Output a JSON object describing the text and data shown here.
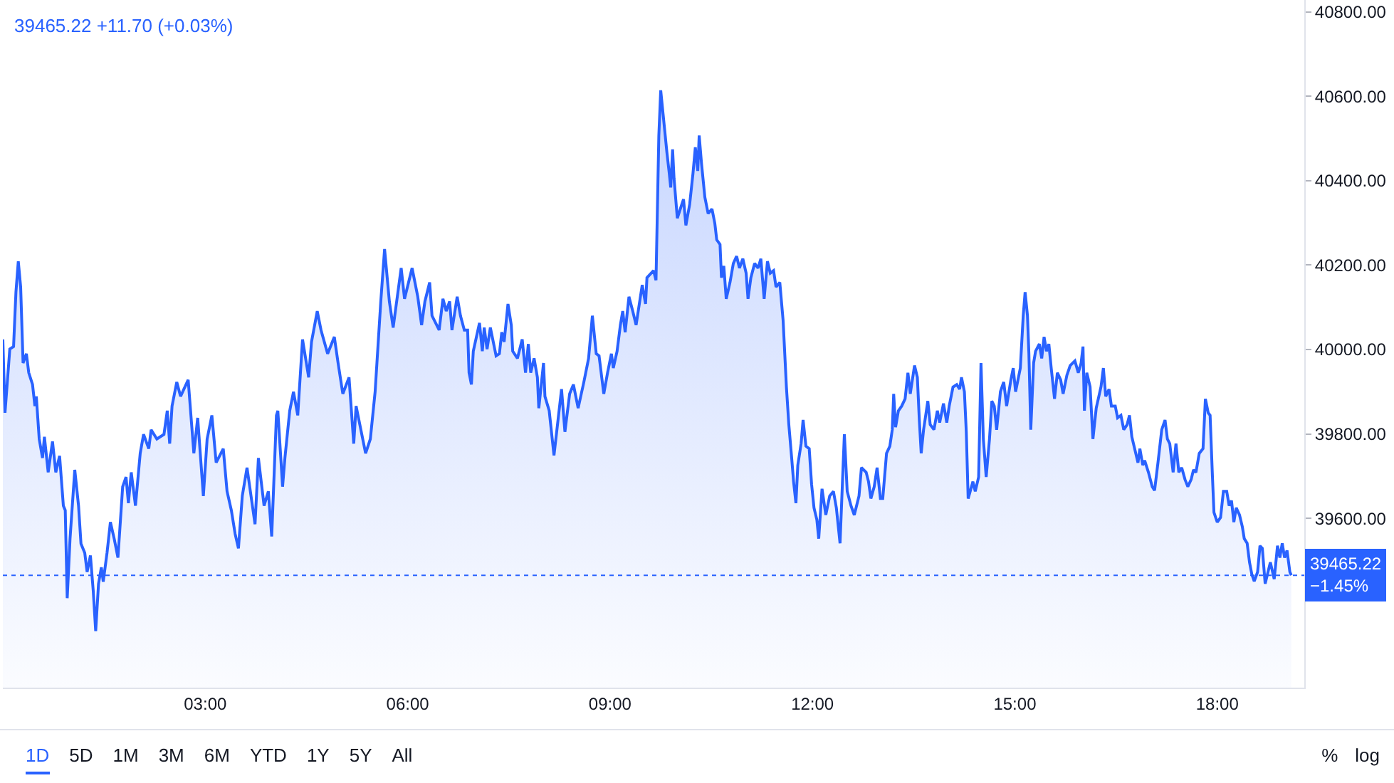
{
  "chart_data": {
    "type": "area",
    "title": "39465.22 +11.70 (+0.03%)",
    "color": "#2962ff",
    "x": [
      0,
      0.032,
      0.103,
      0.159,
      0.194,
      0.229,
      0.264,
      0.3,
      0.349,
      0.384,
      0.44,
      0.475,
      0.496,
      0.539,
      0.588,
      0.616,
      0.672,
      0.736,
      0.785,
      0.841,
      0.897,
      0.925,
      0.954,
      0.996,
      1.066,
      1.122,
      1.158,
      1.214,
      1.249,
      1.298,
      1.34,
      1.376,
      1.418,
      1.46,
      1.488,
      1.544,
      1.594,
      1.65,
      1.706,
      1.776,
      1.826,
      1.861,
      1.903,
      1.966,
      2.036,
      2.086,
      2.163,
      2.198,
      2.283,
      2.388,
      2.437,
      2.473,
      2.508,
      2.578,
      2.634,
      2.747,
      2.831,
      2.888,
      2.972,
      3.028,
      3.098,
      3.162,
      3.267,
      3.323,
      3.387,
      3.443,
      3.492,
      3.549,
      3.619,
      3.738,
      3.788,
      3.872,
      3.935,
      3.985,
      4.055,
      4.076,
      4.146,
      4.181,
      4.252,
      4.308,
      4.371,
      4.442,
      4.533,
      4.575,
      4.66,
      4.716,
      4.814,
      4.913,
      4.969,
      5.039,
      5.131,
      5.201,
      5.236,
      5.377,
      5.447,
      5.518,
      5.602,
      5.658,
      5.729,
      5.785,
      5.904,
      5.954,
      6.066,
      6.15,
      6.207,
      6.256,
      6.326,
      6.361,
      6.467,
      6.523,
      6.572,
      6.622,
      6.657,
      6.734,
      6.783,
      6.84,
      6.889,
      6.91,
      6.945,
      6.973,
      7.065,
      7.107,
      7.135,
      7.177,
      7.226,
      7.311,
      7.36,
      7.395,
      7.43,
      7.487,
      7.536,
      7.557,
      7.627,
      7.698,
      7.747,
      7.789,
      7.824,
      7.874,
      7.923,
      7.944,
      8.014,
      8.035,
      8.098,
      8.169,
      8.281,
      8.331,
      8.401,
      8.457,
      8.527,
      8.612,
      8.682,
      8.738,
      8.795,
      8.837,
      8.907,
      8.963,
      9.02,
      9.048,
      9.104,
      9.153,
      9.188,
      9.224,
      9.28,
      9.336,
      9.386,
      9.477,
      9.526,
      9.547,
      9.645,
      9.681,
      9.723,
      9.751,
      9.786,
      9.842,
      9.878,
      9.899,
      9.927,
      9.948,
      9.997,
      10.054,
      10.089,
      10.124,
      10.18,
      10.229,
      10.264,
      10.3,
      10.321,
      10.356,
      10.405,
      10.454,
      10.511,
      10.553,
      10.581,
      10.63,
      10.651,
      10.686,
      10.722,
      10.778,
      10.827,
      10.876,
      10.918,
      10.968,
      11.017,
      11.045,
      11.087,
      11.143,
      11.193,
      11.235,
      11.284,
      11.333,
      11.375,
      11.424,
      11.46,
      11.516,
      11.565,
      11.614,
      11.65,
      11.692,
      11.72,
      11.755,
      11.783,
      11.832,
      11.861,
      11.903,
      11.952,
      11.987,
      12.023,
      12.065,
      12.093,
      12.142,
      12.198,
      12.255,
      12.311,
      12.354,
      12.409,
      12.445,
      12.473,
      12.515,
      12.571,
      12.62,
      12.69,
      12.726,
      12.796,
      12.831,
      12.866,
      12.915,
      12.958,
      13.007,
      13.042,
      13.098,
      13.147,
      13.183,
      13.204,
      13.232,
      13.274,
      13.323,
      13.373,
      13.415,
      13.45,
      13.513,
      13.555,
      13.584,
      13.612,
      13.647,
      13.71,
      13.745,
      13.801,
      13.851,
      13.886,
      13.942,
      13.991,
      14.027,
      14.083,
      14.139,
      14.181,
      14.209,
      14.252,
      14.28,
      14.308,
      14.378,
      14.413,
      14.463,
      14.498,
      14.533,
      14.575,
      14.624,
      14.659,
      14.695,
      14.73,
      14.786,
      14.835,
      14.878,
      14.941,
      14.976,
      15.011,
      15.081,
      15.124,
      15.152,
      15.187,
      15.208,
      15.236,
      15.278,
      15.307,
      15.363,
      15.398,
      15.433,
      15.469,
      15.504,
      15.539,
      15.588,
      15.63,
      15.679,
      15.715,
      15.771,
      15.82,
      15.89,
      15.94,
      15.982,
      16.01,
      16.031,
      16.066,
      16.115,
      16.157,
      16.206,
      16.277,
      16.312,
      16.347,
      16.396,
      16.431,
      16.488,
      16.523,
      16.572,
      16.614,
      16.664,
      16.699,
      16.734,
      16.783,
      16.825,
      16.853,
      16.896,
      16.924,
      16.98,
      17.036,
      17.071,
      17.121,
      17.177,
      17.226,
      17.261,
      17.296,
      17.346,
      17.388,
      17.43,
      17.473,
      17.522,
      17.564,
      17.613,
      17.648,
      17.684,
      17.733,
      17.789,
      17.824,
      17.866,
      17.894,
      17.929,
      17.951,
      18,
      18.049,
      18.091,
      18.14,
      18.176,
      18.211,
      18.246,
      18.281,
      18.33,
      18.372,
      18.4,
      18.443,
      18.478,
      18.513,
      18.548,
      18.598,
      18.633,
      18.668,
      18.71,
      18.752,
      18.787,
      18.844,
      18.893,
      18.928,
      18.963,
      18.998,
      19.034,
      19.076,
      19.097
    ],
    "values": [
      40024,
      39850,
      40001,
      40007,
      40136,
      40209,
      40148,
      39968,
      39990,
      39945,
      39917,
      39866,
      39889,
      39788,
      39743,
      39793,
      39709,
      39782,
      39709,
      39748,
      39630,
      39619,
      39411,
      39552,
      39715,
      39630,
      39540,
      39518,
      39473,
      39512,
      39428,
      39333,
      39445,
      39484,
      39450,
      39518,
      39591,
      39552,
      39507,
      39675,
      39698,
      39636,
      39709,
      39630,
      39754,
      39799,
      39765,
      39810,
      39788,
      39799,
      39855,
      39777,
      39866,
      39923,
      39889,
      39928,
      39754,
      39838,
      39653,
      39788,
      39844,
      39732,
      39765,
      39664,
      39619,
      39563,
      39529,
      39653,
      39720,
      39586,
      39743,
      39630,
      39664,
      39557,
      39844,
      39855,
      39675,
      39743,
      39855,
      39900,
      39844,
      40024,
      39934,
      40018,
      40091,
      40046,
      39990,
      40030,
      39968,
      39895,
      39934,
      39777,
      39866,
      39754,
      39788,
      39900,
      40114,
      40238,
      40114,
      40052,
      40193,
      40120,
      40193,
      40125,
      40058,
      40114,
      40159,
      40080,
      40046,
      40120,
      40091,
      40114,
      40046,
      40125,
      40080,
      40046,
      40046,
      39945,
      39917,
      39996,
      40063,
      39996,
      40052,
      40001,
      40052,
      39985,
      39990,
      40041,
      40018,
      40108,
      40058,
      39996,
      39979,
      40024,
      39945,
      40013,
      39945,
      39979,
      39934,
      39861,
      39968,
      39889,
      39855,
      39749,
      39906,
      39805,
      39895,
      39917,
      39861,
      39923,
      39979,
      40080,
      39990,
      39985,
      39895,
      39945,
      39990,
      39956,
      39996,
      40058,
      40091,
      40041,
      40125,
      40091,
      40058,
      40153,
      40108,
      40170,
      40187,
      40164,
      40507,
      40614,
      40558,
      40468,
      40417,
      40384,
      40474,
      40406,
      40311,
      40339,
      40356,
      40294,
      40344,
      40417,
      40479,
      40423,
      40507,
      40440,
      40361,
      40322,
      40333,
      40299,
      40260,
      40249,
      40170,
      40198,
      40120,
      40159,
      40204,
      40221,
      40193,
      40215,
      40181,
      40120,
      40170,
      40204,
      40193,
      40215,
      40120,
      40209,
      40181,
      40187,
      40148,
      40159,
      40069,
      39911,
      39822,
      39743,
      39687,
      39636,
      39726,
      39777,
      39833,
      39771,
      39765,
      39681,
      39625,
      39597,
      39552,
      39670,
      39608,
      39653,
      39664,
      39625,
      39541,
      39687,
      39799,
      39664,
      39630,
      39608,
      39653,
      39720,
      39709,
      39687,
      39647,
      39675,
      39720,
      39647,
      39647,
      39754,
      39771,
      39810,
      39895,
      39816,
      39855,
      39866,
      39883,
      39945,
      39895,
      39962,
      39934,
      39833,
      39754,
      39810,
      39878,
      39822,
      39810,
      39855,
      39827,
      39872,
      39827,
      39866,
      39911,
      39917,
      39906,
      39934,
      39900,
      39805,
      39647,
      39687,
      39664,
      39698,
      39968,
      39788,
      39698,
      39788,
      39878,
      39866,
      39810,
      39900,
      39923,
      39866,
      39928,
      39956,
      39900,
      39956,
      40080,
      40136,
      40080,
      39990,
      39810,
      39968,
      39996,
      40013,
      39979,
      40030,
      39996,
      40013,
      39956,
      39883,
      39945,
      39928,
      39895,
      39939,
      39962,
      39973,
      39945,
      39968,
      40007,
      39855,
      39945,
      39912,
      39788,
      39861,
      39912,
      39956,
      39889,
      39906,
      39866,
      39866,
      39838,
      39844,
      39810,
      39822,
      39844,
      39793,
      39760,
      39732,
      39765,
      39726,
      39737,
      39709,
      39675,
      39666,
      39732,
      39810,
      39833,
      39788,
      39777,
      39709,
      39777,
      39709,
      39720,
      39692,
      39675,
      39692,
      39715,
      39709,
      39754,
      39765,
      39883,
      39850,
      39844,
      39698,
      39614,
      39591,
      39602,
      39664,
      39664,
      39630,
      39642,
      39591,
      39625,
      39608,
      39580,
      39552,
      39541,
      39496,
      39467,
      39451,
      39473,
      39535,
      39529,
      39445,
      39473,
      39496,
      39456,
      39535,
      39507,
      39541,
      39507,
      39524,
      39473,
      39465.22
    ],
    "xlim": [
      0,
      19.29
    ],
    "xticks": [
      {
        "value": 3,
        "label": "03:00"
      },
      {
        "value": 6,
        "label": "06:00"
      },
      {
        "value": 9,
        "label": "09:00"
      },
      {
        "value": 12,
        "label": "12:00"
      },
      {
        "value": 15,
        "label": "15:00"
      },
      {
        "value": 18,
        "label": "18:00"
      }
    ],
    "ylim": [
      39199,
      40828
    ],
    "yticks": [
      {
        "value": 39600,
        "label": "39600.00"
      },
      {
        "value": 39800,
        "label": "39800.00"
      },
      {
        "value": 40000,
        "label": "40000.00"
      },
      {
        "value": 40200,
        "label": "40200.00"
      },
      {
        "value": 40400,
        "label": "40400.00"
      },
      {
        "value": 40600,
        "label": "40600.00"
      },
      {
        "value": 40800,
        "label": "40800.00"
      }
    ],
    "ref_lines": [
      {
        "axis": "y",
        "value": 39465.22,
        "label": "39465.22\n−1.45%",
        "color": "#2962ff",
        "line_style": "dotted"
      }
    ],
    "annotations": [
      "1D",
      "5D",
      "1M",
      "3M",
      "6M",
      "YTD",
      "1Y",
      "5Y",
      "All",
      "%",
      "log"
    ]
  }
}
